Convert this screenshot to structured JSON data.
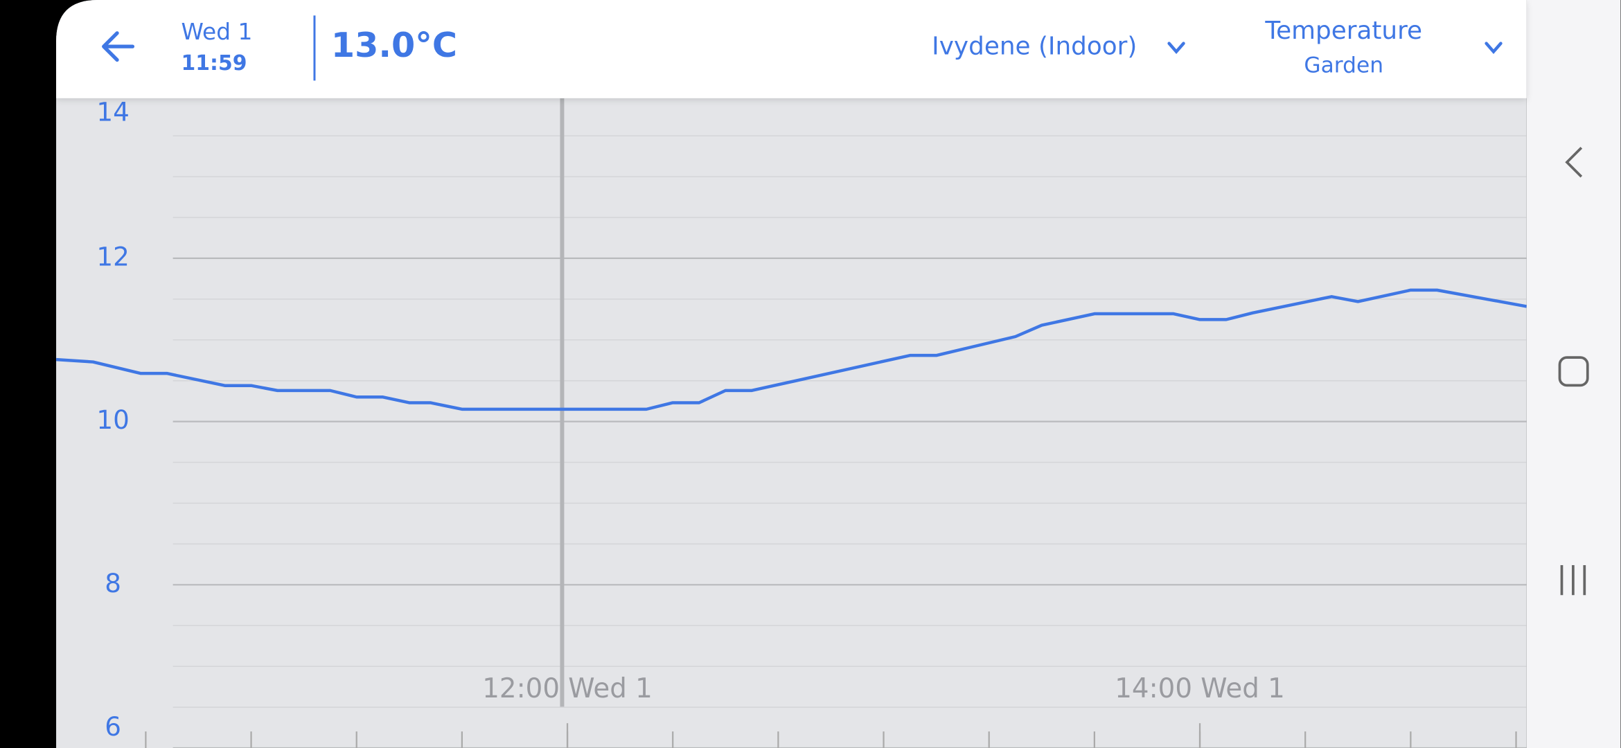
{
  "header": {
    "date": "Wed 1",
    "time": "11:59",
    "reading": "13.0°C",
    "location": "Ivydene (Indoor)",
    "metric": "Temperature",
    "room": "Garden"
  },
  "chart_data": {
    "type": "line",
    "x": [
      "10:23",
      "10:30",
      "10:39",
      "10:44",
      "10:55",
      "11:00",
      "11:05",
      "11:15",
      "11:20",
      "11:25",
      "11:30",
      "11:34",
      "11:40",
      "12:15",
      "12:20",
      "12:25",
      "12:30",
      "12:35",
      "13:05",
      "13:10",
      "13:25",
      "13:30",
      "13:40",
      "13:55",
      "14:00",
      "14:05",
      "14:10",
      "14:25",
      "14:30",
      "14:40",
      "14:45",
      "15:02"
    ],
    "values": [
      10.76,
      10.73,
      10.59,
      10.59,
      10.44,
      10.44,
      10.38,
      10.38,
      10.3,
      10.3,
      10.23,
      10.23,
      10.15,
      10.15,
      10.23,
      10.23,
      10.38,
      10.38,
      10.81,
      10.81,
      11.04,
      11.18,
      11.32,
      11.32,
      11.25,
      11.25,
      11.33,
      11.53,
      11.47,
      11.61,
      11.61,
      11.41
    ],
    "color": "#3f77e4",
    "ylim": [
      6,
      14
    ],
    "yticks": [
      6,
      8,
      10,
      12,
      14
    ],
    "minor_yticks": [
      6.5,
      7,
      7.5,
      8.5,
      9,
      9.5,
      10.5,
      11,
      11.5,
      12.5,
      13,
      13.5
    ],
    "xlim": [
      "10:23",
      "15:02"
    ],
    "xticks": [
      {
        "value": "12:00",
        "label": "12:00 Wed 1"
      },
      {
        "value": "14:00",
        "label": "14:00 Wed 1"
      }
    ],
    "minor_xticks": [
      "10:40",
      "11:00",
      "11:20",
      "11:40",
      "12:00",
      "12:20",
      "12:40",
      "13:00",
      "13:20",
      "13:40",
      "14:00",
      "14:20",
      "14:40",
      "15:00"
    ],
    "grid": true
  }
}
